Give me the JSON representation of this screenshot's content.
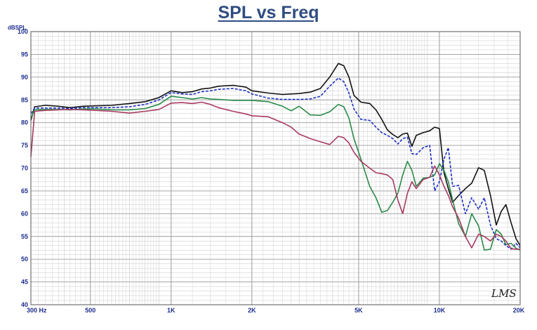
{
  "colors": {
    "title": "#2f4d82",
    "axis_text": "#1c2d8c",
    "grid_major": "#9a9a9a",
    "grid_minor": "#c8c8c8",
    "frame": "#555555"
  },
  "chart_data": {
    "type": "line",
    "title": "SPL vs Freq",
    "ylabel": "dBSPL",
    "xlabel": "",
    "xscale": "log",
    "xlim": [
      300,
      20000
    ],
    "ylim": [
      40,
      100
    ],
    "grid": true,
    "yticks": [
      40,
      45,
      50,
      55,
      60,
      65,
      70,
      75,
      80,
      85,
      90,
      95,
      100
    ],
    "xticks": [
      {
        "value": 300,
        "label": "300 Hz"
      },
      {
        "value": 500,
        "label": "500"
      },
      {
        "value": 1000,
        "label": "1K"
      },
      {
        "value": 2000,
        "label": "2K"
      },
      {
        "value": 5000,
        "label": "5K"
      },
      {
        "value": 10000,
        "label": "10K"
      },
      {
        "value": 20000,
        "label": "20K"
      }
    ],
    "watermark": "LMS",
    "series": [
      {
        "color": "#111111",
        "dash": "",
        "points": [
          [
            300,
            80.5
          ],
          [
            310,
            83.5
          ],
          [
            340,
            83.8
          ],
          [
            380,
            83.6
          ],
          [
            420,
            83.3
          ],
          [
            470,
            83.6
          ],
          [
            520,
            83.7
          ],
          [
            600,
            83.8
          ],
          [
            700,
            84.2
          ],
          [
            800,
            84.6
          ],
          [
            900,
            85.5
          ],
          [
            1000,
            87
          ],
          [
            1100,
            86.6
          ],
          [
            1200,
            86.8
          ],
          [
            1300,
            87.4
          ],
          [
            1400,
            87.6
          ],
          [
            1500,
            88
          ],
          [
            1700,
            88.2
          ],
          [
            1900,
            87.8
          ],
          [
            2000,
            87
          ],
          [
            2300,
            86.5
          ],
          [
            2600,
            86.2
          ],
          [
            3000,
            86.4
          ],
          [
            3300,
            86.7
          ],
          [
            3600,
            87.5
          ],
          [
            3900,
            90
          ],
          [
            4200,
            93
          ],
          [
            4400,
            92.5
          ],
          [
            4600,
            90
          ],
          [
            4800,
            86
          ],
          [
            5100,
            84.5
          ],
          [
            5500,
            84.2
          ],
          [
            5800,
            82.8
          ],
          [
            6100,
            80.7
          ],
          [
            6400,
            78.4
          ],
          [
            6700,
            77.4
          ],
          [
            7000,
            76.7
          ],
          [
            7300,
            77.5
          ],
          [
            7600,
            77.7
          ],
          [
            7900,
            74.8
          ],
          [
            8200,
            77.2
          ],
          [
            8700,
            77.8
          ],
          [
            9200,
            78.2
          ],
          [
            9600,
            79
          ],
          [
            10000,
            78.7
          ],
          [
            10400,
            69
          ],
          [
            10800,
            65.5
          ],
          [
            11200,
            62.5
          ],
          [
            11800,
            64
          ],
          [
            12500,
            65.5
          ],
          [
            13200,
            66.7
          ],
          [
            14000,
            70.1
          ],
          [
            14700,
            69.5
          ],
          [
            15500,
            64
          ],
          [
            16300,
            57.5
          ],
          [
            17000,
            60.5
          ],
          [
            17700,
            62
          ],
          [
            18500,
            58
          ],
          [
            19300,
            54.5
          ],
          [
            20000,
            53
          ]
        ]
      },
      {
        "color": "#1c2fc4",
        "dash": "4,2",
        "points": [
          [
            300,
            82
          ],
          [
            310,
            83.2
          ],
          [
            340,
            83.2
          ],
          [
            380,
            83.2
          ],
          [
            420,
            83.1
          ],
          [
            470,
            83.3
          ],
          [
            520,
            83.3
          ],
          [
            600,
            83.3
          ],
          [
            700,
            83.5
          ],
          [
            800,
            84
          ],
          [
            900,
            85
          ],
          [
            1000,
            86.6
          ],
          [
            1100,
            86.3
          ],
          [
            1200,
            86.2
          ],
          [
            1300,
            86.8
          ],
          [
            1400,
            87
          ],
          [
            1500,
            87.3
          ],
          [
            1700,
            87.5
          ],
          [
            1900,
            87
          ],
          [
            2000,
            86.3
          ],
          [
            2300,
            85.4
          ],
          [
            2600,
            85.1
          ],
          [
            3000,
            85.1
          ],
          [
            3300,
            85.2
          ],
          [
            3600,
            85.8
          ],
          [
            3900,
            88
          ],
          [
            4200,
            89.8
          ],
          [
            4400,
            89
          ],
          [
            4600,
            86.5
          ],
          [
            4800,
            83
          ],
          [
            5100,
            80.7
          ],
          [
            5500,
            80.5
          ],
          [
            5800,
            79
          ],
          [
            6100,
            77.8
          ],
          [
            6400,
            77.2
          ],
          [
            6700,
            76.5
          ],
          [
            7000,
            75.3
          ],
          [
            7300,
            76.5
          ],
          [
            7600,
            76.8
          ],
          [
            7900,
            73.2
          ],
          [
            8200,
            73
          ],
          [
            8700,
            74.5
          ],
          [
            9200,
            75
          ],
          [
            9600,
            65
          ],
          [
            10000,
            67
          ],
          [
            10400,
            72
          ],
          [
            10800,
            74.5
          ],
          [
            11200,
            66
          ],
          [
            11800,
            66.2
          ],
          [
            12500,
            60
          ],
          [
            13200,
            63.5
          ],
          [
            14000,
            61
          ],
          [
            14700,
            63.5
          ],
          [
            15500,
            57.5
          ],
          [
            16300,
            54.5
          ],
          [
            17000,
            54
          ],
          [
            17700,
            53
          ],
          [
            18500,
            52.2
          ],
          [
            19300,
            53.5
          ],
          [
            20000,
            52.5
          ]
        ]
      },
      {
        "color": "#2a8a48",
        "dash": "",
        "points": [
          [
            300,
            81
          ],
          [
            310,
            82.8
          ],
          [
            340,
            82.9
          ],
          [
            380,
            82.9
          ],
          [
            420,
            82.8
          ],
          [
            470,
            83
          ],
          [
            520,
            83
          ],
          [
            600,
            82.8
          ],
          [
            700,
            82.8
          ],
          [
            800,
            83.1
          ],
          [
            900,
            84
          ],
          [
            1000,
            85.8
          ],
          [
            1100,
            85.5
          ],
          [
            1200,
            85.2
          ],
          [
            1300,
            85.5
          ],
          [
            1400,
            85.2
          ],
          [
            1500,
            85.1
          ],
          [
            1700,
            84.9
          ],
          [
            1900,
            84.9
          ],
          [
            2000,
            84.9
          ],
          [
            2300,
            84.6
          ],
          [
            2600,
            83.6
          ],
          [
            2800,
            82.6
          ],
          [
            3000,
            83.6
          ],
          [
            3300,
            81.7
          ],
          [
            3600,
            81.6
          ],
          [
            3900,
            82.4
          ],
          [
            4200,
            84
          ],
          [
            4400,
            83.5
          ],
          [
            4600,
            81
          ],
          [
            4800,
            76.5
          ],
          [
            5100,
            72
          ],
          [
            5500,
            66
          ],
          [
            5800,
            63.5
          ],
          [
            6100,
            60.3
          ],
          [
            6400,
            60.7
          ],
          [
            6700,
            62.5
          ],
          [
            7000,
            64.5
          ],
          [
            7300,
            68.5
          ],
          [
            7600,
            71.5
          ],
          [
            7900,
            69.5
          ],
          [
            8200,
            66
          ],
          [
            8700,
            67.8
          ],
          [
            9200,
            68
          ],
          [
            9600,
            68.5
          ],
          [
            10000,
            71
          ],
          [
            10400,
            69.5
          ],
          [
            10800,
            67
          ],
          [
            11200,
            63
          ],
          [
            11800,
            57.8
          ],
          [
            12500,
            55
          ],
          [
            13200,
            60
          ],
          [
            14000,
            57.3
          ],
          [
            14700,
            52
          ],
          [
            15500,
            52.2
          ],
          [
            16300,
            56.5
          ],
          [
            17000,
            55.5
          ],
          [
            17700,
            53.2
          ],
          [
            18500,
            53.5
          ],
          [
            19300,
            52.4
          ],
          [
            20000,
            52
          ]
        ]
      },
      {
        "color": "#a83a62",
        "dash": "",
        "points": [
          [
            300,
            72.5
          ],
          [
            310,
            82.5
          ],
          [
            340,
            82.7
          ],
          [
            380,
            82.8
          ],
          [
            420,
            82.9
          ],
          [
            470,
            82.8
          ],
          [
            520,
            82.7
          ],
          [
            600,
            82.5
          ],
          [
            700,
            82.1
          ],
          [
            800,
            82.5
          ],
          [
            900,
            82.9
          ],
          [
            1000,
            84.3
          ],
          [
            1100,
            84.4
          ],
          [
            1200,
            84.2
          ],
          [
            1300,
            84.5
          ],
          [
            1400,
            84
          ],
          [
            1500,
            83.3
          ],
          [
            1700,
            82.5
          ],
          [
            1900,
            81.9
          ],
          [
            2000,
            81.5
          ],
          [
            2300,
            81.3
          ],
          [
            2600,
            80
          ],
          [
            2800,
            79
          ],
          [
            3000,
            77.5
          ],
          [
            3300,
            76.5
          ],
          [
            3600,
            75.8
          ],
          [
            3900,
            75.2
          ],
          [
            4200,
            77
          ],
          [
            4400,
            76.7
          ],
          [
            4600,
            75.5
          ],
          [
            4800,
            73.5
          ],
          [
            5100,
            71.5
          ],
          [
            5500,
            70
          ],
          [
            5800,
            69
          ],
          [
            6100,
            68.8
          ],
          [
            6400,
            68.5
          ],
          [
            6700,
            67.5
          ],
          [
            7000,
            63
          ],
          [
            7300,
            60
          ],
          [
            7600,
            64.5
          ],
          [
            7900,
            67
          ],
          [
            8200,
            65.5
          ],
          [
            8700,
            67.5
          ],
          [
            9200,
            68
          ],
          [
            9600,
            70.5
          ],
          [
            10000,
            68.5
          ],
          [
            10400,
            66
          ],
          [
            10800,
            64
          ],
          [
            11200,
            61.5
          ],
          [
            11800,
            59
          ],
          [
            12500,
            55
          ],
          [
            13200,
            52.5
          ],
          [
            14000,
            55.5
          ],
          [
            14700,
            55
          ],
          [
            15500,
            54
          ],
          [
            16300,
            55.5
          ],
          [
            17000,
            55
          ],
          [
            17700,
            54
          ],
          [
            18500,
            52.3
          ],
          [
            19300,
            52.2
          ],
          [
            20000,
            52.2
          ]
        ]
      }
    ]
  }
}
